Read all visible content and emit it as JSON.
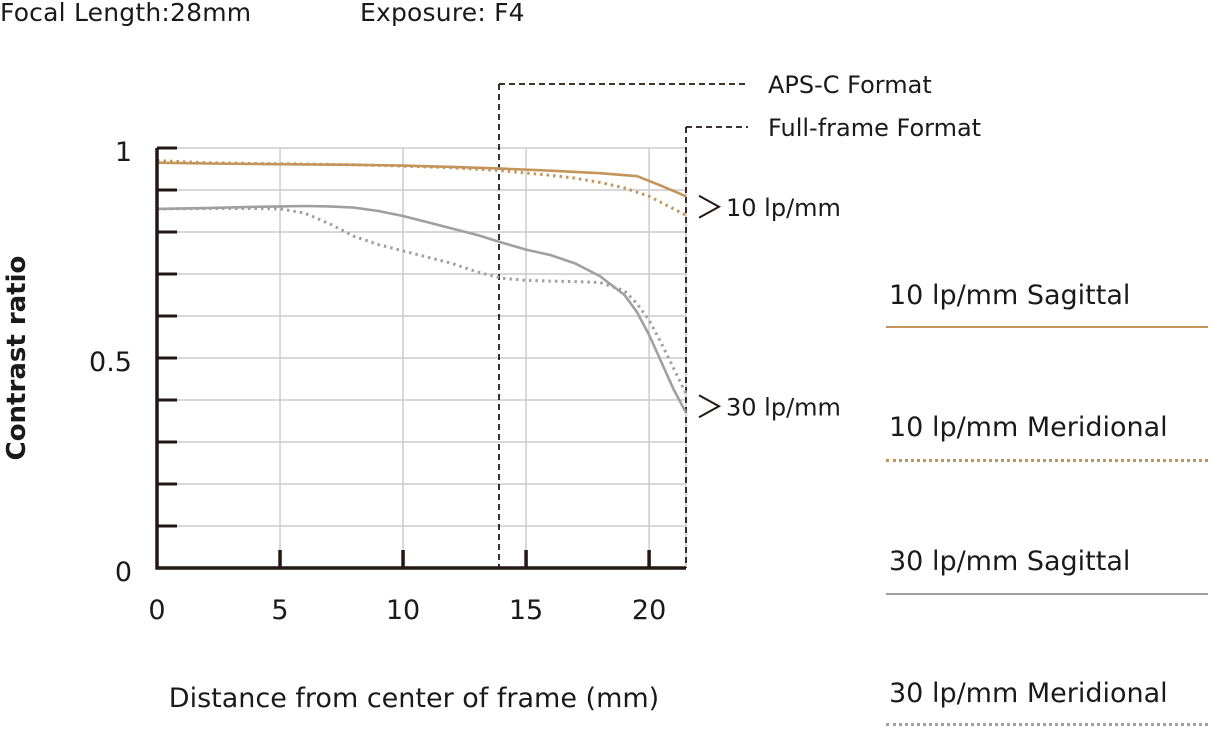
{
  "header": {
    "focal_length": "Focal Length:28mm",
    "exposure": "Exposure: F4"
  },
  "colors": {
    "lp10": "#c4955b",
    "lp30": "#a0a0a0",
    "axis": "#231815",
    "grid": "#cccccc",
    "text": "#1a1a1a"
  },
  "chart_data": {
    "type": "line",
    "xlabel": "Distance from center of frame (mm)",
    "ylabel": "Contrast ratio",
    "xlim": [
      0,
      21.5
    ],
    "ylim": [
      0,
      1
    ],
    "x_ticks": [
      0,
      5,
      10,
      15,
      20
    ],
    "y_tick_labels": [
      {
        "value": 0,
        "label": "0"
      },
      {
        "value": 0.5,
        "label": "0.5"
      },
      {
        "value": 1,
        "label": "1"
      }
    ],
    "y_grid_step": 0.1,
    "grid": true,
    "series": [
      {
        "name": "10 lp/mm Sagittal",
        "color": "#c4955b",
        "style": "solid",
        "x": [
          0,
          2,
          4,
          6,
          8,
          10,
          12,
          14,
          16,
          18,
          19.5,
          20.5,
          21.5
        ],
        "y": [
          0.965,
          0.963,
          0.962,
          0.961,
          0.96,
          0.958,
          0.955,
          0.951,
          0.946,
          0.94,
          0.933,
          0.91,
          0.885
        ]
      },
      {
        "name": "10 lp/mm Meridional",
        "color": "#c4955b",
        "style": "dotted",
        "x": [
          0,
          2,
          4,
          6,
          8,
          10,
          12,
          14,
          16,
          17,
          18,
          19,
          20,
          21,
          21.5
        ],
        "y": [
          0.97,
          0.965,
          0.963,
          0.962,
          0.96,
          0.957,
          0.953,
          0.946,
          0.935,
          0.928,
          0.918,
          0.905,
          0.885,
          0.855,
          0.84
        ]
      },
      {
        "name": "30 lp/mm Sagittal",
        "color": "#a0a0a0",
        "style": "solid",
        "x": [
          0,
          2,
          4,
          5,
          6,
          7,
          8,
          9,
          10,
          11,
          12,
          13,
          14,
          15,
          16,
          17,
          18,
          19,
          19.5,
          20,
          20.5,
          21,
          21.5
        ],
        "y": [
          0.855,
          0.857,
          0.86,
          0.861,
          0.862,
          0.861,
          0.858,
          0.85,
          0.838,
          0.823,
          0.808,
          0.793,
          0.775,
          0.758,
          0.745,
          0.725,
          0.695,
          0.65,
          0.61,
          0.555,
          0.49,
          0.425,
          0.37
        ]
      },
      {
        "name": "30 lp/mm Meridional",
        "color": "#a0a0a0",
        "style": "dotted",
        "x": [
          0,
          2,
          4,
          5,
          6,
          7,
          8,
          9,
          10,
          11,
          12,
          13,
          14,
          15,
          16,
          17,
          18,
          19,
          19.5,
          20,
          20.5,
          21,
          21.5
        ],
        "y": [
          0.855,
          0.856,
          0.856,
          0.855,
          0.845,
          0.82,
          0.79,
          0.77,
          0.755,
          0.74,
          0.725,
          0.705,
          0.69,
          0.685,
          0.683,
          0.682,
          0.68,
          0.66,
          0.63,
          0.59,
          0.535,
          0.475,
          0.415
        ]
      }
    ],
    "reference_lines": [
      {
        "label": "APS-C Format",
        "x": 13.9
      },
      {
        "label": "Full-frame Format",
        "x": 21.5
      }
    ],
    "annotations": [
      {
        "label": "10 lp/mm",
        "y": 0.86
      },
      {
        "label": "30 lp/mm",
        "y": 0.385
      }
    ],
    "legend_position": "right"
  }
}
